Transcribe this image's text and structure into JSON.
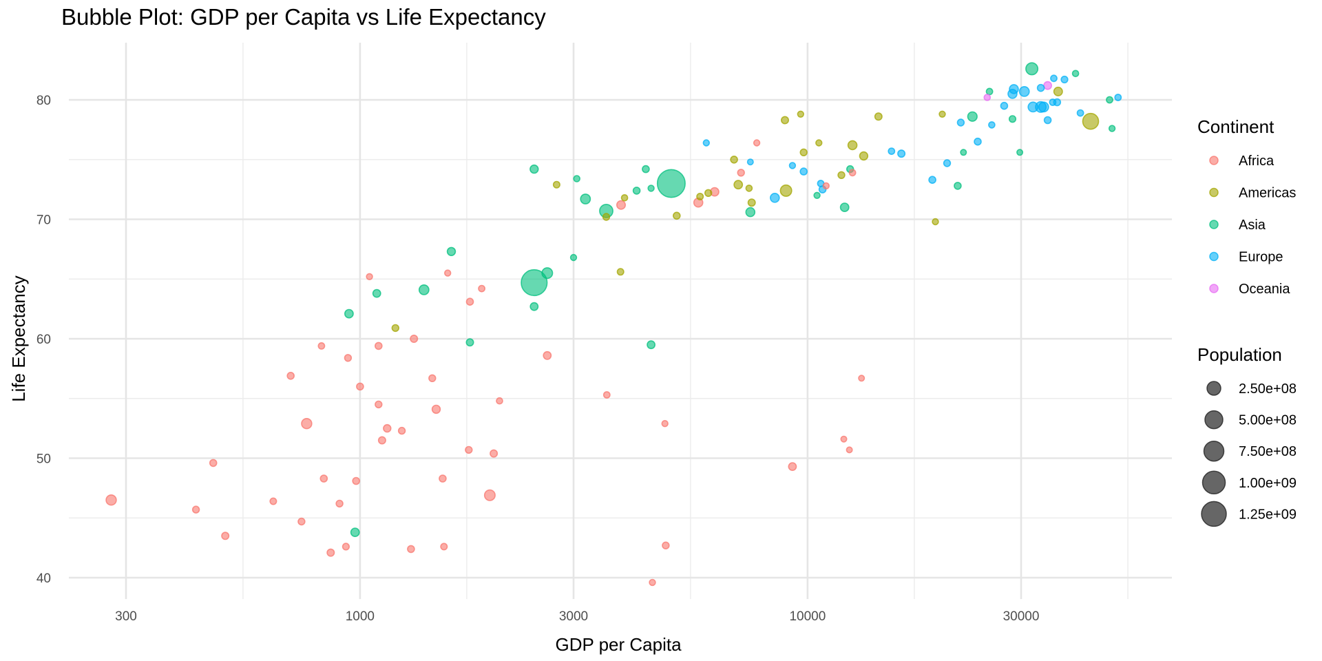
{
  "chart_data": {
    "type": "scatter",
    "subtype": "bubble",
    "title": "Bubble Plot: GDP per Capita vs Life Expectancy",
    "xlabel": "GDP per Capita",
    "ylabel": "Life Expectancy",
    "x_scale": "log10",
    "x_ticks": [
      300,
      1000,
      3000,
      10000,
      30000
    ],
    "x_tick_labels": [
      "300",
      "1000",
      "3000",
      "10000",
      "30000"
    ],
    "xlim": [
      245,
      60000
    ],
    "y_ticks": [
      40,
      50,
      60,
      70,
      80
    ],
    "y_tick_labels": [
      "40",
      "50",
      "60",
      "70",
      "80"
    ],
    "ylim": [
      37.5,
      84.8
    ],
    "grid": true,
    "point_alpha": 0.6,
    "legend_position": "right",
    "color_legend": {
      "title": "Continent",
      "entries": [
        {
          "label": "Africa",
          "color": "#F8766D"
        },
        {
          "label": "Americas",
          "color": "#A3A500"
        },
        {
          "label": "Asia",
          "color": "#00BF7D"
        },
        {
          "label": "Europe",
          "color": "#00B0F6"
        },
        {
          "label": "Oceania",
          "color": "#E76BF3"
        }
      ]
    },
    "size_legend": {
      "title": "Population",
      "entries": [
        {
          "label": "2.50e+08",
          "value": 250000000
        },
        {
          "label": "5.00e+08",
          "value": 500000000
        },
        {
          "label": "7.50e+08",
          "value": 750000000
        },
        {
          "label": "1.00e+09",
          "value": 1000000000
        },
        {
          "label": "1.25e+09",
          "value": 1250000000
        }
      ]
    },
    "series": [
      {
        "name": "Africa",
        "points": [
          [
            278,
            46.5,
            70000000
          ],
          [
            430,
            45.7,
            8000000
          ],
          [
            470,
            49.6,
            9000000
          ],
          [
            500,
            43.5,
            12000000
          ],
          [
            640,
            46.4,
            6000000
          ],
          [
            700,
            56.9,
            10000000
          ],
          [
            740,
            44.7,
            8000000
          ],
          [
            760,
            52.9,
            70000000
          ],
          [
            820,
            59.4,
            5000000
          ],
          [
            830,
            48.3,
            10000000
          ],
          [
            860,
            42.1,
            12000000
          ],
          [
            900,
            46.2,
            8000000
          ],
          [
            930,
            42.6,
            7000000
          ],
          [
            940,
            58.4,
            8000000
          ],
          [
            980,
            48.1,
            9000000
          ],
          [
            1000,
            56.0,
            10000000
          ],
          [
            1050,
            65.2,
            3000000
          ],
          [
            1100,
            54.5,
            8000000
          ],
          [
            1100,
            59.4,
            10000000
          ],
          [
            1120,
            51.5,
            12000000
          ],
          [
            1150,
            52.5,
            15000000
          ],
          [
            1240,
            52.3,
            8000000
          ],
          [
            1300,
            42.4,
            9000000
          ],
          [
            1320,
            60.0,
            12000000
          ],
          [
            1450,
            56.7,
            8000000
          ],
          [
            1480,
            54.1,
            25000000
          ],
          [
            1530,
            48.3,
            10000000
          ],
          [
            1540,
            42.6,
            6000000
          ],
          [
            1570,
            65.5,
            3000000
          ],
          [
            1750,
            50.7,
            8000000
          ],
          [
            1760,
            63.1,
            10000000
          ],
          [
            1870,
            64.2,
            5000000
          ],
          [
            1990,
            50.4,
            12000000
          ],
          [
            2050,
            54.8,
            4000000
          ],
          [
            1950,
            46.9,
            80000000
          ],
          [
            2620,
            58.6,
            20000000
          ],
          [
            3560,
            55.3,
            5000000
          ],
          [
            3830,
            71.2,
            33000000
          ],
          [
            4500,
            39.6,
            3000000
          ],
          [
            4800,
            52.9,
            3000000
          ],
          [
            4820,
            42.7,
            8000000
          ],
          [
            5700,
            71.4,
            40000000
          ],
          [
            6200,
            72.3,
            30000000
          ],
          [
            7100,
            73.9,
            8000000
          ],
          [
            7700,
            76.4,
            3000000
          ],
          [
            9250,
            49.3,
            20000000
          ],
          [
            11000,
            72.8,
            3000000
          ],
          [
            12050,
            51.6,
            2000000
          ],
          [
            12400,
            50.7,
            2000000
          ],
          [
            12600,
            73.9,
            5000000
          ],
          [
            13200,
            56.7,
            2000000
          ]
        ]
      },
      {
        "name": "Americas",
        "points": [
          [
            1200,
            60.9,
            8000000
          ],
          [
            2750,
            72.9,
            6000000
          ],
          [
            3550,
            70.2,
            8000000
          ],
          [
            3820,
            65.6,
            6000000
          ],
          [
            3900,
            71.8,
            4000000
          ],
          [
            5100,
            70.3,
            9000000
          ],
          [
            5750,
            71.9,
            6000000
          ],
          [
            6000,
            72.2,
            8000000
          ],
          [
            6850,
            75.0,
            10000000
          ],
          [
            7000,
            72.9,
            30000000
          ],
          [
            7400,
            72.6,
            4000000
          ],
          [
            7500,
            71.4,
            12000000
          ],
          [
            8900,
            78.3,
            12000000
          ],
          [
            8950,
            72.4,
            100000000
          ],
          [
            9650,
            78.8,
            3000000
          ],
          [
            9800,
            75.6,
            8000000
          ],
          [
            10600,
            76.4,
            3000000
          ],
          [
            11900,
            73.7,
            8000000
          ],
          [
            12600,
            76.2,
            40000000
          ],
          [
            13350,
            75.3,
            25000000
          ],
          [
            14400,
            78.6,
            12000000
          ],
          [
            19300,
            69.8,
            3000000
          ],
          [
            20000,
            78.8,
            3000000
          ],
          [
            36300,
            80.7,
            33000000
          ],
          [
            42900,
            78.2,
            300000000
          ]
        ]
      },
      {
        "name": "Asia",
        "points": [
          [
            945,
            62.1,
            30000000
          ],
          [
            975,
            43.8,
            30000000
          ],
          [
            1090,
            63.8,
            20000000
          ],
          [
            1390,
            64.1,
            60000000
          ],
          [
            1600,
            67.3,
            25000000
          ],
          [
            1760,
            59.7,
            12000000
          ],
          [
            2450,
            64.7,
            1110000000
          ],
          [
            2450,
            62.7,
            20000000
          ],
          [
            2620,
            65.5,
            80000000
          ],
          [
            3000,
            66.8,
            3000000
          ],
          [
            3050,
            73.4,
            4000000
          ],
          [
            3190,
            71.7,
            60000000
          ],
          [
            3550,
            70.7,
            170000000
          ],
          [
            2450,
            74.2,
            25000000
          ],
          [
            4150,
            72.4,
            10000000
          ],
          [
            4350,
            74.2,
            10000000
          ],
          [
            4470,
            72.6,
            3000000
          ],
          [
            4470,
            59.5,
            20000000
          ],
          [
            4960,
            73.0,
            1320000000
          ],
          [
            7450,
            70.6,
            40000000
          ],
          [
            10500,
            72.0,
            3000000
          ],
          [
            12100,
            71.0,
            30000000
          ],
          [
            12450,
            74.2,
            8000000
          ],
          [
            22300,
            75.6,
            2000000
          ],
          [
            21650,
            72.8,
            10000000
          ],
          [
            23350,
            78.6,
            50000000
          ],
          [
            25500,
            80.7,
            5000000
          ],
          [
            28700,
            78.4,
            7000000
          ],
          [
            29800,
            75.6,
            2000000
          ],
          [
            31700,
            82.6,
            127000000
          ],
          [
            39700,
            82.2,
            4000000
          ],
          [
            47300,
            80.0,
            5000000
          ],
          [
            47900,
            77.6,
            3000000
          ]
        ]
      },
      {
        "name": "Europe",
        "points": [
          [
            5940,
            76.4,
            3000000
          ],
          [
            7450,
            74.8,
            2000000
          ],
          [
            8450,
            71.8,
            40000000
          ],
          [
            9250,
            74.5,
            3000000
          ],
          [
            9800,
            74.0,
            10000000
          ],
          [
            10700,
            73.0,
            5000000
          ],
          [
            10800,
            72.5,
            10000000
          ],
          [
            15400,
            75.7,
            5000000
          ],
          [
            16200,
            75.5,
            12000000
          ],
          [
            19000,
            73.3,
            10000000
          ],
          [
            20500,
            74.7,
            8000000
          ],
          [
            22000,
            78.1,
            8000000
          ],
          [
            24000,
            76.5,
            10000000
          ],
          [
            25800,
            77.9,
            4000000
          ],
          [
            27500,
            79.5,
            10000000
          ],
          [
            28700,
            80.5,
            40000000
          ],
          [
            28900,
            80.9,
            40000000
          ],
          [
            30500,
            80.7,
            60000000
          ],
          [
            31900,
            79.4,
            60000000
          ],
          [
            33200,
            79.4,
            80000000
          ],
          [
            33700,
            79.4,
            60000000
          ],
          [
            33200,
            81.0,
            9000000
          ],
          [
            34400,
            78.3,
            10000000
          ],
          [
            35300,
            79.8,
            5000000
          ],
          [
            35500,
            81.8,
            5000000
          ],
          [
            36100,
            79.8,
            10000000
          ],
          [
            37500,
            81.7,
            7000000
          ],
          [
            40700,
            78.9,
            5000000
          ],
          [
            49400,
            80.2,
            5000000
          ]
        ]
      },
      {
        "name": "Oceania",
        "points": [
          [
            25200,
            80.2,
            4000000
          ],
          [
            34400,
            81.2,
            20000000
          ]
        ]
      }
    ]
  }
}
